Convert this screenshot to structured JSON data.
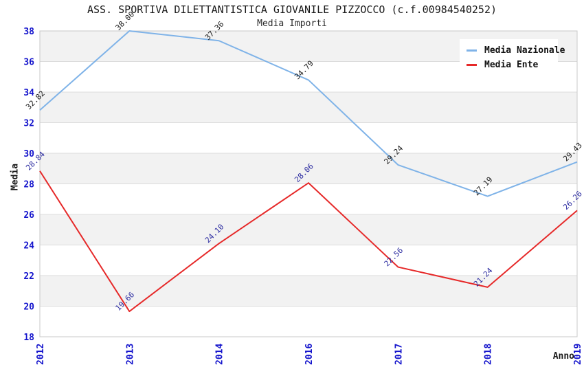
{
  "chart_data": {
    "type": "line",
    "title": "ASS. SPORTIVA DILETTANTISTICA GIOVANILE PIZZOCCO (c.f.00984540252)",
    "subtitle": "Media Importi",
    "xlabel": "Anno",
    "ylabel": "Media",
    "categories": [
      "2012",
      "2013",
      "2014",
      "2016",
      "2017",
      "2018",
      "2019"
    ],
    "series": [
      {
        "name": "Media Nazionale",
        "color": "#7FB3E8",
        "label_color": "#1A1A1A",
        "values": [
          32.82,
          38.0,
          37.36,
          34.79,
          29.24,
          27.19,
          29.43
        ],
        "labels": [
          "32.82",
          "38.00",
          "37.36",
          "34.79",
          "29.24",
          "27.19",
          "29.43"
        ]
      },
      {
        "name": "Media Ente",
        "color": "#E62929",
        "label_color": "#2B2BA0",
        "values": [
          28.84,
          19.66,
          24.1,
          28.06,
          22.56,
          21.24,
          26.26
        ],
        "labels": [
          "28.84",
          "19.66",
          "24.10",
          "28.06",
          "22.56",
          "21.24",
          "26.26"
        ]
      }
    ],
    "ylim": [
      18,
      38
    ],
    "yticks": [
      18,
      20,
      22,
      24,
      26,
      28,
      30,
      32,
      34,
      36,
      38
    ],
    "grid": true,
    "legend_position": "top-right",
    "colors": {
      "band": "#F2F2F2",
      "band_alt": "#FFFFFF",
      "grid": "#DCDCDC",
      "border": "#C8C8C8",
      "tick_label": "#1414CC"
    }
  }
}
